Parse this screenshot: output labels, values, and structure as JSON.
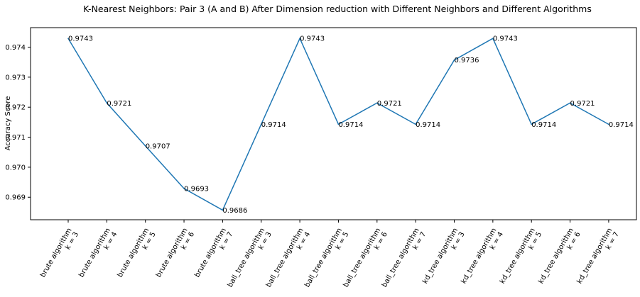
{
  "chart_data": {
    "type": "line",
    "title": "K-Nearest Neighbors: Pair 3 (A and B) After Dimension reduction with Different Neighbors and Different Algorithms",
    "xlabel": "",
    "ylabel": "Accuracy Score",
    "categories": [
      [
        "brute algorithm",
        "k = 3"
      ],
      [
        "brute algorithm",
        "k = 4"
      ],
      [
        "brute algorithm",
        "k = 5"
      ],
      [
        "brute algorithm",
        "k = 6"
      ],
      [
        "brute algorithm",
        "k = 7"
      ],
      [
        "ball_tree algorithm",
        "k = 3"
      ],
      [
        "ball_tree algorithm",
        "k = 4"
      ],
      [
        "ball_tree algorithm",
        "k = 5"
      ],
      [
        "ball_tree algorithm",
        "k = 6"
      ],
      [
        "ball_tree algorithm",
        "k = 7"
      ],
      [
        "kd_tree algorithm",
        "k = 3"
      ],
      [
        "kd_tree algorithm",
        "k = 4"
      ],
      [
        "kd_tree algorithm",
        "k = 5"
      ],
      [
        "kd_tree algorithm",
        "k = 6"
      ],
      [
        "kd_tree algorithm",
        "k = 7"
      ]
    ],
    "values": [
      0.97429,
      0.97214,
      0.97071,
      0.96929,
      0.96857,
      0.97143,
      0.97429,
      0.97143,
      0.97214,
      0.97143,
      0.97357,
      0.97429,
      0.97143,
      0.97214,
      0.97143
    ],
    "data_labels": [
      "0.9743",
      "0.9721",
      "0.9707",
      "0.9693",
      "0.9686",
      "0.9714",
      "0.9743",
      "0.9714",
      "0.9721",
      "0.9714",
      "0.9736",
      "0.9743",
      "0.9714",
      "0.9721",
      "0.9714"
    ],
    "yticks": [
      0.969,
      0.97,
      0.971,
      0.972,
      0.973,
      0.974
    ],
    "ytick_labels": [
      "0.969",
      "0.970",
      "0.971",
      "0.972",
      "0.973",
      "0.974"
    ],
    "ylim": [
      0.96825,
      0.97465
    ],
    "line_color": "#1f77b4",
    "grid": false,
    "legend": "none"
  }
}
